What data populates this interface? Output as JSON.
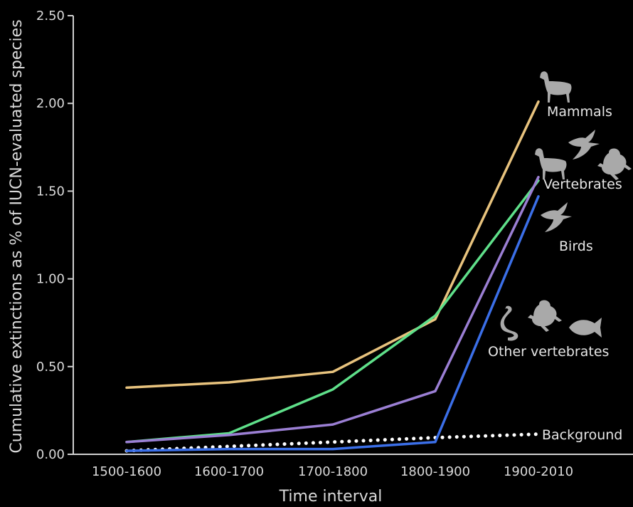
{
  "chart_data": {
    "type": "line",
    "title": "",
    "xlabel": "Time interval",
    "ylabel": "Cumulative extinctions as % of IUCN-evaluated species",
    "categories": [
      "1500-1600",
      "1600-1700",
      "1700-1800",
      "1800-1900",
      "1900-2010"
    ],
    "ylim": [
      0,
      2.5
    ],
    "yticks": [
      "0.00",
      "0.50",
      "1.00",
      "1.50",
      "2.00",
      "2.50"
    ],
    "grid": false,
    "legend": "direct labels at line ends",
    "series": [
      {
        "name": "Mammals",
        "values": [
          0.38,
          0.41,
          0.47,
          0.77,
          2.01
        ],
        "color": "#e8c37e",
        "style": "solid",
        "icons": [
          "deer-icon"
        ]
      },
      {
        "name": "Vertebrates",
        "values": [
          0.07,
          0.12,
          0.37,
          0.79,
          1.56
        ],
        "color": "#5fe08a",
        "style": "solid",
        "icons": [
          "deer-icon",
          "bird-icon",
          "frog-icon"
        ]
      },
      {
        "name": "Birds",
        "values": [
          0.07,
          0.11,
          0.17,
          0.36,
          1.58
        ],
        "color": "#9b7fd4",
        "style": "solid",
        "icons": [
          "bird-icon"
        ]
      },
      {
        "name": "Other vertebrates",
        "values": [
          0.02,
          0.03,
          0.03,
          0.07,
          1.47
        ],
        "color": "#3b6fe8",
        "style": "solid",
        "icons": [
          "snake-icon",
          "frog-icon",
          "fish-icon"
        ]
      },
      {
        "name": "Background",
        "values": [
          0.02,
          0.045,
          0.07,
          0.095,
          0.115
        ],
        "color": "#ffffff",
        "style": "dotted",
        "icons": []
      }
    ]
  }
}
